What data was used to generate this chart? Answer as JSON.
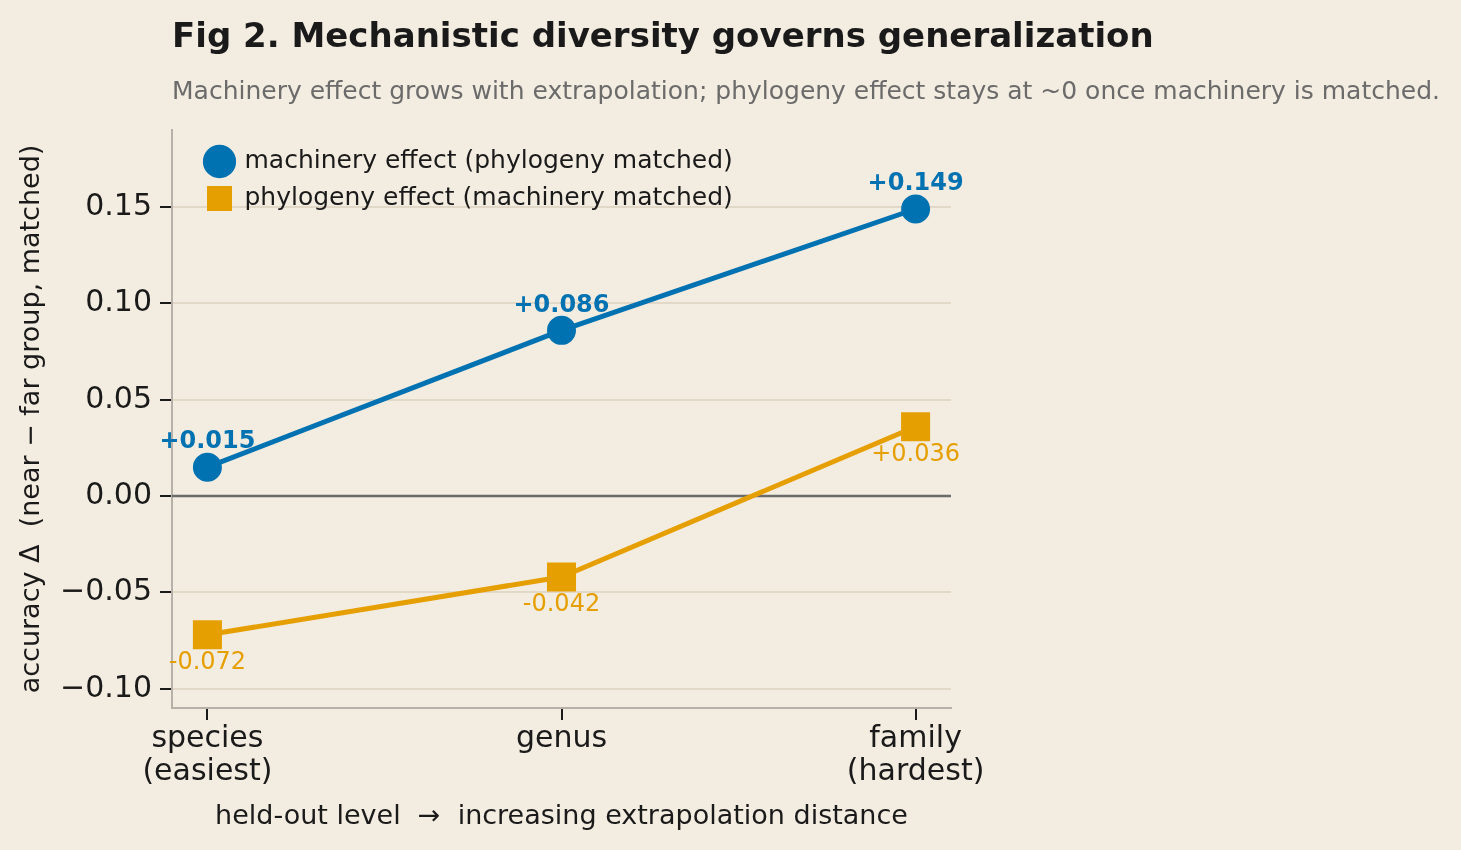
{
  "chart_data": {
    "type": "line",
    "title": "Fig 2. Mechanistic diversity governs generalization",
    "subtitle": "Machinery effect grows with extrapolation; phylogeny effect stays at ~0 once machinery is matched.",
    "xlabel": "held-out level  →  increasing extrapolation distance",
    "ylabel": "accuracy Δ  (near − far group, matched)",
    "categories": [
      "species\n(easiest)",
      "genus",
      "family\n(hardest)"
    ],
    "series": [
      {
        "name": "machinery effect (phylogeny matched)",
        "color": "#0072b2",
        "marker": "circle",
        "values": [
          0.015,
          0.086,
          0.149
        ],
        "value_labels": [
          "+0.015",
          "+0.086",
          "+0.149"
        ]
      },
      {
        "name": "phylogeny effect (machinery matched)",
        "color": "#e69f00",
        "marker": "square",
        "values": [
          -0.072,
          -0.042,
          0.036
        ],
        "value_labels": [
          "-0.072",
          "-0.042",
          "+0.036"
        ]
      }
    ],
    "ylim": [
      -0.11,
      0.19
    ],
    "yticks": [
      {
        "value": -0.1,
        "label": "−0.10"
      },
      {
        "value": -0.05,
        "label": "−0.05"
      },
      {
        "value": 0,
        "label": "0.00"
      },
      {
        "value": 0.05,
        "label": "0.05"
      },
      {
        "value": 0.1,
        "label": "0.10"
      },
      {
        "value": 0.15,
        "label": "0.15"
      }
    ],
    "grid": "y",
    "legend": "top left",
    "line_style": "solid",
    "ref_lines": [
      {
        "axis": "y",
        "value": 0,
        "color": "#6b6b6b"
      }
    ]
  }
}
